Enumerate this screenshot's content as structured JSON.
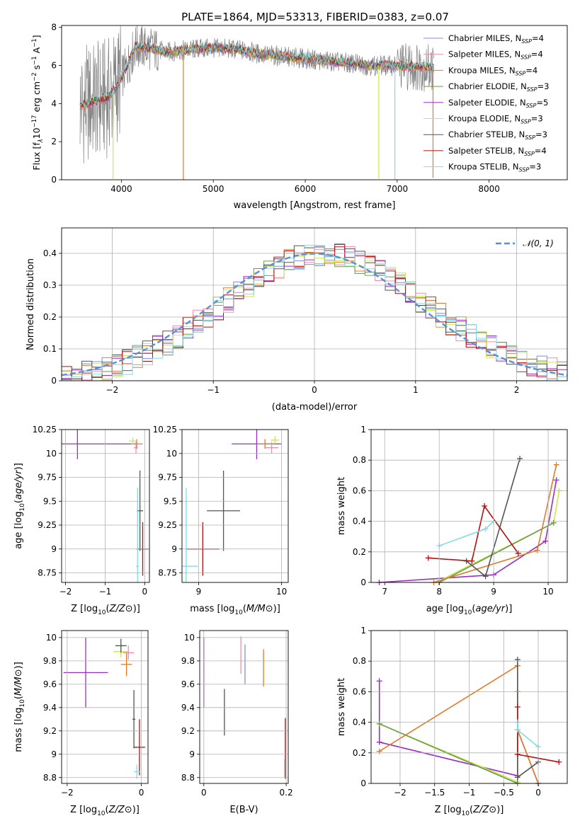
{
  "figure": {
    "title": "PLATE=1864, MJD=53313, FIBERID=0383, z=0.07"
  },
  "series_colors": {
    "Chabrier MILES": "#7b8fe0",
    "Salpeter MILES": "#f08ab0",
    "Kroupa MILES": "#e07b2a",
    "Chabrier ELODIE": "#6a9a4a",
    "Salpeter ELODIE": "#9a2fc0",
    "Kroupa ELODIE": "#c7ea4a",
    "Chabrier STELIB": "#555555",
    "Salpeter STELIB": "#b01010",
    "Kroupa STELIB": "#80dde4"
  },
  "chart_data": [
    {
      "id": "spectrum",
      "type": "line",
      "title": "PLATE=1864, MJD=53313, FIBERID=0383, z=0.07",
      "xlabel": "wavelength [Angstrom, rest frame]",
      "ylabel_parts": [
        "Flux [f",
        "λ",
        "10",
        "−17",
        " erg cm",
        "−2",
        " s",
        "−1",
        " A",
        "−1",
        "]"
      ],
      "xlim": [
        3350,
        8850
      ],
      "ylim": [
        0,
        8.1
      ],
      "xticks": [
        4000,
        5000,
        6000,
        7000,
        8000
      ],
      "yticks": [
        0,
        2,
        4,
        6,
        8
      ],
      "legend_location": "right",
      "legend": [
        {
          "name": "Chabrier MILES",
          "nssp": "4",
          "color": "#7b8fe0"
        },
        {
          "name": "Salpeter MILES",
          "nssp": "4",
          "color": "#f08ab0"
        },
        {
          "name": "Kroupa MILES",
          "nssp": "4",
          "color": "#e07b2a"
        },
        {
          "name": "Chabrier ELODIE",
          "nssp": "3",
          "color": "#6a9a4a"
        },
        {
          "name": "Salpeter ELODIE",
          "nssp": "5",
          "color": "#9a2fc0"
        },
        {
          "name": "Kroupa ELODIE",
          "nssp": "3",
          "color": "#c7ea4a"
        },
        {
          "name": "Chabrier STELIB",
          "nssp": "3",
          "color": "#555555"
        },
        {
          "name": "Salpeter STELIB",
          "nssp": "4",
          "color": "#b01010"
        },
        {
          "name": "Kroupa STELIB",
          "nssp": "3",
          "color": "#80dde4"
        }
      ],
      "data_color": "#808080",
      "continuum": {
        "x": [
          3550,
          3650,
          3750,
          3850,
          3950,
          4050,
          4150,
          4300,
          4500,
          4700,
          4900,
          5100,
          5300,
          5500,
          5700,
          5900,
          6100,
          6300,
          6500,
          6700,
          6900,
          7100,
          7300,
          7400
        ],
        "y": [
          3.9,
          4.0,
          4.2,
          4.3,
          4.9,
          5.8,
          7.0,
          6.9,
          6.7,
          6.8,
          6.9,
          6.9,
          6.8,
          6.6,
          6.5,
          6.4,
          6.3,
          6.2,
          6.1,
          6.0,
          6.0,
          5.95,
          5.9,
          5.9
        ]
      },
      "dips": [
        {
          "x": 3910,
          "y": 0.05,
          "color": "#c7ea4a"
        },
        {
          "x": 4675,
          "y": 0.0,
          "color": "#e07b2a"
        },
        {
          "x": 6800,
          "y": 0.05,
          "color": "#c7ea4a"
        },
        {
          "x": 6975,
          "y": 0.0,
          "color": "#80dde4"
        },
        {
          "x": 7390,
          "y": 0.1,
          "color": "#e07b2a"
        }
      ]
    },
    {
      "id": "residuals",
      "type": "histogram",
      "xlabel": "(data-model)/error",
      "ylabel": "Normed distribution",
      "xlim": [
        -2.5,
        2.5
      ],
      "ylim": [
        0,
        0.48
      ],
      "xticks": [
        -2,
        -1,
        0,
        1,
        2
      ],
      "yticks": [
        0.0,
        0.1,
        0.2,
        0.3,
        0.4
      ],
      "grid": true,
      "legend": [
        {
          "name": "𝒩(0, 1)",
          "color": "#5b8ed6",
          "style": "dashed"
        }
      ],
      "legend_location": "top-right",
      "bins": 50
    },
    {
      "id": "age-vs-Z",
      "type": "scatter",
      "xlabel": "Z [log10(Z/Z⊙)]",
      "ylabel": "age  [log10(age/yr)]",
      "xlim": [
        -2.1,
        0.12
      ],
      "ylim": [
        8.65,
        10.25
      ],
      "xticks": [
        -2,
        -1,
        0
      ],
      "yticks": [
        8.75,
        9.0,
        9.25,
        9.5,
        9.75,
        10.0,
        10.25
      ],
      "grid": true,
      "points": [
        {
          "x": -0.12,
          "y": 9.4,
          "xerr": 0.08,
          "yerr": 0.42,
          "color": "#555555"
        },
        {
          "x": -0.05,
          "y": 9.0,
          "xerr": 0.15,
          "yerr": 0.28,
          "color": "#b01010"
        },
        {
          "x": -0.18,
          "y": 8.82,
          "xerr": 0.04,
          "yerr": 0.82,
          "color": "#80dde4"
        },
        {
          "x": -1.7,
          "y": 10.1,
          "xerr": 1.5,
          "yerr": 0.16,
          "color": "#9a2fc0"
        },
        {
          "x": -0.2,
          "y": 10.1,
          "xerr": 0.15,
          "yerr": 0.05,
          "color": "#e07b2a"
        },
        {
          "x": -0.3,
          "y": 10.13,
          "xerr": 0.1,
          "yerr": 0.04,
          "color": "#c7ea4a"
        },
        {
          "x": -0.22,
          "y": 10.06,
          "xerr": 0.05,
          "yerr": 0.06,
          "color": "#f08ab0"
        }
      ]
    },
    {
      "id": "age-vs-mass",
      "type": "scatter",
      "xlabel": "mass [log10(M/M⊙)]",
      "ylabel": "",
      "xlim": [
        8.8,
        10.08
      ],
      "ylim": [
        8.65,
        10.25
      ],
      "xticks": [
        9,
        10
      ],
      "yticks": [
        8.75,
        9.0,
        9.25,
        9.5,
        9.75,
        10.0,
        10.25
      ],
      "grid": true,
      "points": [
        {
          "x": 9.3,
          "y": 9.4,
          "xerr": 0.2,
          "yerr": 0.42,
          "color": "#555555"
        },
        {
          "x": 9.05,
          "y": 9.0,
          "xerr": 0.2,
          "yerr": 0.28,
          "color": "#b01010"
        },
        {
          "x": 8.85,
          "y": 8.82,
          "xerr": 0.14,
          "yerr": 0.82,
          "color": "#80dde4"
        },
        {
          "x": 9.7,
          "y": 10.1,
          "xerr": 0.3,
          "yerr": 0.16,
          "color": "#9a2fc0"
        },
        {
          "x": 9.8,
          "y": 10.1,
          "xerr": 0.1,
          "yerr": 0.05,
          "color": "#e07b2a"
        },
        {
          "x": 9.92,
          "y": 10.14,
          "xerr": 0.05,
          "yerr": 0.04,
          "color": "#c7ea4a"
        },
        {
          "x": 9.88,
          "y": 10.06,
          "xerr": 0.08,
          "yerr": 0.06,
          "color": "#f08ab0"
        }
      ]
    },
    {
      "id": "massweight-vs-age",
      "type": "line",
      "xlabel": "age  [log10(age/yr)]",
      "ylabel": "mass weight",
      "xlim": [
        6.75,
        10.35
      ],
      "ylim": [
        0,
        1.0
      ],
      "xticks": [
        7,
        8,
        9,
        10
      ],
      "yticks": [
        0.0,
        0.2,
        0.4,
        0.6,
        0.8,
        1.0
      ],
      "grid": true,
      "series": [
        {
          "color": "#9a2fc0",
          "x": [
            6.9,
            9.0,
            9.95,
            10.15
          ],
          "y": [
            0.0,
            0.05,
            0.27,
            0.67
          ]
        },
        {
          "color": "#c7ea4a",
          "x": [
            8.0,
            10.1,
            10.2
          ],
          "y": [
            0.01,
            0.39,
            0.6
          ]
        },
        {
          "color": "#6a9a4a",
          "x": [
            8.0,
            10.1
          ],
          "y": [
            0.0,
            0.39
          ]
        },
        {
          "color": "#e07b2a",
          "x": [
            7.9,
            9.8,
            10.15
          ],
          "y": [
            0.0,
            0.21,
            0.77
          ]
        },
        {
          "color": "#555555",
          "x": [
            8.5,
            8.85,
            9.48
          ],
          "y": [
            0.14,
            0.04,
            0.81
          ]
        },
        {
          "color": "#b01010",
          "x": [
            7.8,
            8.6,
            8.83,
            9.45
          ],
          "y": [
            0.16,
            0.14,
            0.5,
            0.19
          ]
        },
        {
          "color": "#80dde4",
          "x": [
            8.0,
            8.85,
            9.0
          ],
          "y": [
            0.24,
            0.35,
            0.4
          ]
        }
      ]
    },
    {
      "id": "mass-vs-Z",
      "type": "scatter",
      "xlabel": "Z [log10(Z/Z⊙)]",
      "ylabel": "mass [log10(M/M⊙)]",
      "xlim": [
        -2.15,
        0.18
      ],
      "ylim": [
        8.75,
        10.06
      ],
      "xticks": [
        -2,
        0
      ],
      "yticks": [
        8.8,
        9.0,
        9.2,
        9.4,
        9.6,
        9.8,
        10.0
      ],
      "grid": true,
      "points": [
        {
          "x": -0.2,
          "y": 9.3,
          "xerr": 0.04,
          "yerr": 0.25,
          "color": "#555555"
        },
        {
          "x": -0.05,
          "y": 9.06,
          "xerr": 0.15,
          "yerr": 0.24,
          "color": "#b01010"
        },
        {
          "x": -0.12,
          "y": 8.85,
          "xerr": 0.08,
          "yerr": 0.06,
          "color": "#80dde4"
        },
        {
          "x": -1.5,
          "y": 9.7,
          "xerr": 0.6,
          "yerr": 0.3,
          "color": "#9a2fc0"
        },
        {
          "x": -0.4,
          "y": 9.77,
          "xerr": 0.15,
          "yerr": 0.1,
          "color": "#e07b2a"
        },
        {
          "x": -0.55,
          "y": 9.88,
          "xerr": 0.2,
          "yerr": 0.05,
          "color": "#c7ea4a"
        },
        {
          "x": -0.35,
          "y": 9.87,
          "xerr": 0.15,
          "yerr": 0.06,
          "color": "#f08ab0"
        },
        {
          "x": -0.55,
          "y": 9.93,
          "xerr": 0.15,
          "yerr": 0.06,
          "color": "#555555"
        }
      ]
    },
    {
      "id": "mass-vs-EBV",
      "type": "errorbar",
      "xlabel": "E(B-V)",
      "ylabel": "",
      "xlim": [
        -0.01,
        0.205
      ],
      "ylim": [
        8.75,
        10.06
      ],
      "xticks": [
        0.0,
        0.2
      ],
      "yticks": [
        8.8,
        9.0,
        9.2,
        9.4,
        9.6,
        9.8,
        10.0
      ],
      "grid": true,
      "points": [
        {
          "x": 0.0,
          "y": 9.7,
          "yerr": 0.3,
          "color": "#9a2fc0"
        },
        {
          "x": 0.05,
          "y": 9.36,
          "yerr": 0.2,
          "color": "#555555"
        },
        {
          "x": 0.09,
          "y": 9.85,
          "yerr": 0.16,
          "color": "#f08ab0"
        },
        {
          "x": 0.1,
          "y": 9.77,
          "yerr": 0.17,
          "color": "#7b8fe0"
        },
        {
          "x": 0.145,
          "y": 9.74,
          "yerr": 0.16,
          "color": "#e07b2a"
        },
        {
          "x": 0.198,
          "y": 9.05,
          "yerr": 0.26,
          "color": "#b01010"
        },
        {
          "x": 0.196,
          "y": 8.88,
          "yerr": 0.08,
          "color": "#80dde4"
        }
      ]
    },
    {
      "id": "massweight-vs-Z",
      "type": "line",
      "xlabel": "Z [log10(Z/Z⊙)]",
      "ylabel": "mass weight",
      "xlim": [
        -2.42,
        0.42
      ],
      "ylim": [
        0,
        1.0
      ],
      "xticks": [
        -2.0,
        -1.5,
        -1.0,
        -0.5,
        0.0
      ],
      "grid": true,
      "yticks": [
        0.0,
        0.2,
        0.4,
        0.6,
        0.8,
        1.0
      ],
      "series": [
        {
          "color": "#9a2fc0",
          "x": [
            -2.3,
            -2.3,
            -0.3,
            -0.3,
            0.0
          ],
          "y": [
            0.67,
            0.27,
            0.05,
            0.35,
            0.0
          ]
        },
        {
          "color": "#c7ea4a",
          "x": [
            -2.3,
            -0.3,
            -0.3
          ],
          "y": [
            0.39,
            0.01,
            0.6
          ]
        },
        {
          "color": "#6a9a4a",
          "x": [
            -2.3,
            -0.3,
            -0.3
          ],
          "y": [
            0.39,
            0.0,
            0.6
          ]
        },
        {
          "color": "#e07b2a",
          "x": [
            -2.3,
            -0.3,
            -0.3,
            0.0
          ],
          "y": [
            0.21,
            0.77,
            0.35,
            0.0
          ]
        },
        {
          "color": "#555555",
          "x": [
            -0.3,
            -0.3,
            0.0
          ],
          "y": [
            0.81,
            0.04,
            0.14
          ]
        },
        {
          "color": "#b01010",
          "x": [
            -0.3,
            -0.3,
            0.3
          ],
          "y": [
            0.5,
            0.19,
            0.14
          ]
        },
        {
          "color": "#80dde4",
          "x": [
            -0.3,
            -0.3,
            0.0
          ],
          "y": [
            0.4,
            0.35,
            0.24
          ]
        }
      ]
    }
  ]
}
